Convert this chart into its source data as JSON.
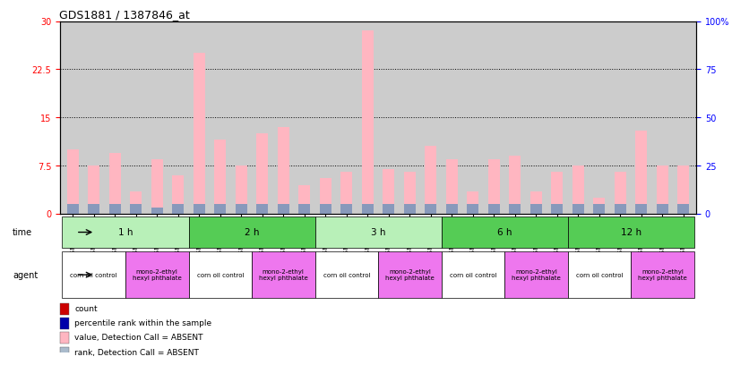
{
  "title": "GDS1881 / 1387846_at",
  "samples": [
    "GSM100955",
    "GSM100956",
    "GSM100957",
    "GSM100969",
    "GSM100970",
    "GSM100971",
    "GSM100958",
    "GSM100959",
    "GSM100972",
    "GSM100973",
    "GSM100974",
    "GSM100975",
    "GSM100960",
    "GSM100961",
    "GSM100962",
    "GSM100976",
    "GSM100977",
    "GSM100978",
    "GSM100963",
    "GSM100964",
    "GSM100965",
    "GSM100979",
    "GSM100980",
    "GSM100981",
    "GSM100951",
    "GSM100952",
    "GSM100953",
    "GSM100966",
    "GSM100967",
    "GSM100968"
  ],
  "values": [
    10.0,
    7.5,
    9.5,
    3.5,
    8.5,
    6.0,
    25.0,
    11.5,
    7.5,
    12.5,
    13.5,
    4.5,
    5.5,
    6.5,
    28.5,
    7.0,
    6.5,
    10.5,
    8.5,
    3.5,
    8.5,
    9.0,
    3.5,
    6.5,
    7.5,
    2.5,
    6.5,
    13.0,
    7.5,
    7.5
  ],
  "ranks": [
    1.5,
    1.5,
    1.5,
    1.5,
    1.0,
    1.5,
    1.5,
    1.5,
    1.5,
    1.5,
    1.5,
    1.5,
    1.5,
    1.5,
    1.5,
    1.5,
    1.5,
    1.5,
    1.5,
    1.5,
    1.5,
    1.5,
    1.5,
    1.5,
    1.5,
    1.5,
    1.5,
    1.5,
    1.5,
    1.5
  ],
  "time_groups": [
    {
      "label": "1 h",
      "start": 0,
      "end": 6
    },
    {
      "label": "2 h",
      "start": 6,
      "end": 12
    },
    {
      "label": "3 h",
      "start": 12,
      "end": 18
    },
    {
      "label": "6 h",
      "start": 18,
      "end": 24
    },
    {
      "label": "12 h",
      "start": 24,
      "end": 30
    }
  ],
  "agent_groups": [
    {
      "label": "corn oil control",
      "start": 0,
      "end": 3,
      "is_pink": false
    },
    {
      "label": "mono-2-ethyl\nhexyl phthalate",
      "start": 3,
      "end": 6,
      "is_pink": true
    },
    {
      "label": "corn oil control",
      "start": 6,
      "end": 9,
      "is_pink": false
    },
    {
      "label": "mono-2-ethyl\nhexyl phthalate",
      "start": 9,
      "end": 12,
      "is_pink": true
    },
    {
      "label": "corn oil control",
      "start": 12,
      "end": 15,
      "is_pink": false
    },
    {
      "label": "mono-2-ethyl\nhexyl phthalate",
      "start": 15,
      "end": 18,
      "is_pink": true
    },
    {
      "label": "corn oil control",
      "start": 18,
      "end": 21,
      "is_pink": false
    },
    {
      "label": "mono-2-ethyl\nhexyl phthalate",
      "start": 21,
      "end": 24,
      "is_pink": true
    },
    {
      "label": "corn oil control",
      "start": 24,
      "end": 27,
      "is_pink": false
    },
    {
      "label": "mono-2-ethyl\nhexyl phthalate",
      "start": 27,
      "end": 30,
      "is_pink": true
    }
  ],
  "ylim_left": [
    0,
    30
  ],
  "ylim_right": [
    0,
    100
  ],
  "yticks_left": [
    0,
    7.5,
    15,
    22.5,
    30
  ],
  "yticks_right": [
    0,
    25,
    50,
    75,
    100
  ],
  "ytick_labels_left": [
    "0",
    "7.5",
    "15",
    "22.5",
    "30"
  ],
  "ytick_labels_right": [
    "0",
    "25",
    "50",
    "75",
    "100%"
  ],
  "gridlines": [
    7.5,
    15,
    22.5
  ],
  "bar_color_value": "#ffb6c1",
  "bar_color_rank": "#8899bb",
  "bar_width": 0.55,
  "bg_color": "#cccccc",
  "time_row_color_light": "#b8f0b8",
  "time_row_color_dark": "#55cc55",
  "agent_color_pink": "#ee77ee",
  "agent_color_white": "#ffffff",
  "legend_items": [
    {
      "color": "#cc0000",
      "label": "count"
    },
    {
      "color": "#0000aa",
      "label": "percentile rank within the sample"
    },
    {
      "color": "#ffb6c1",
      "label": "value, Detection Call = ABSENT"
    },
    {
      "color": "#aabbcc",
      "label": "rank, Detection Call = ABSENT"
    }
  ]
}
